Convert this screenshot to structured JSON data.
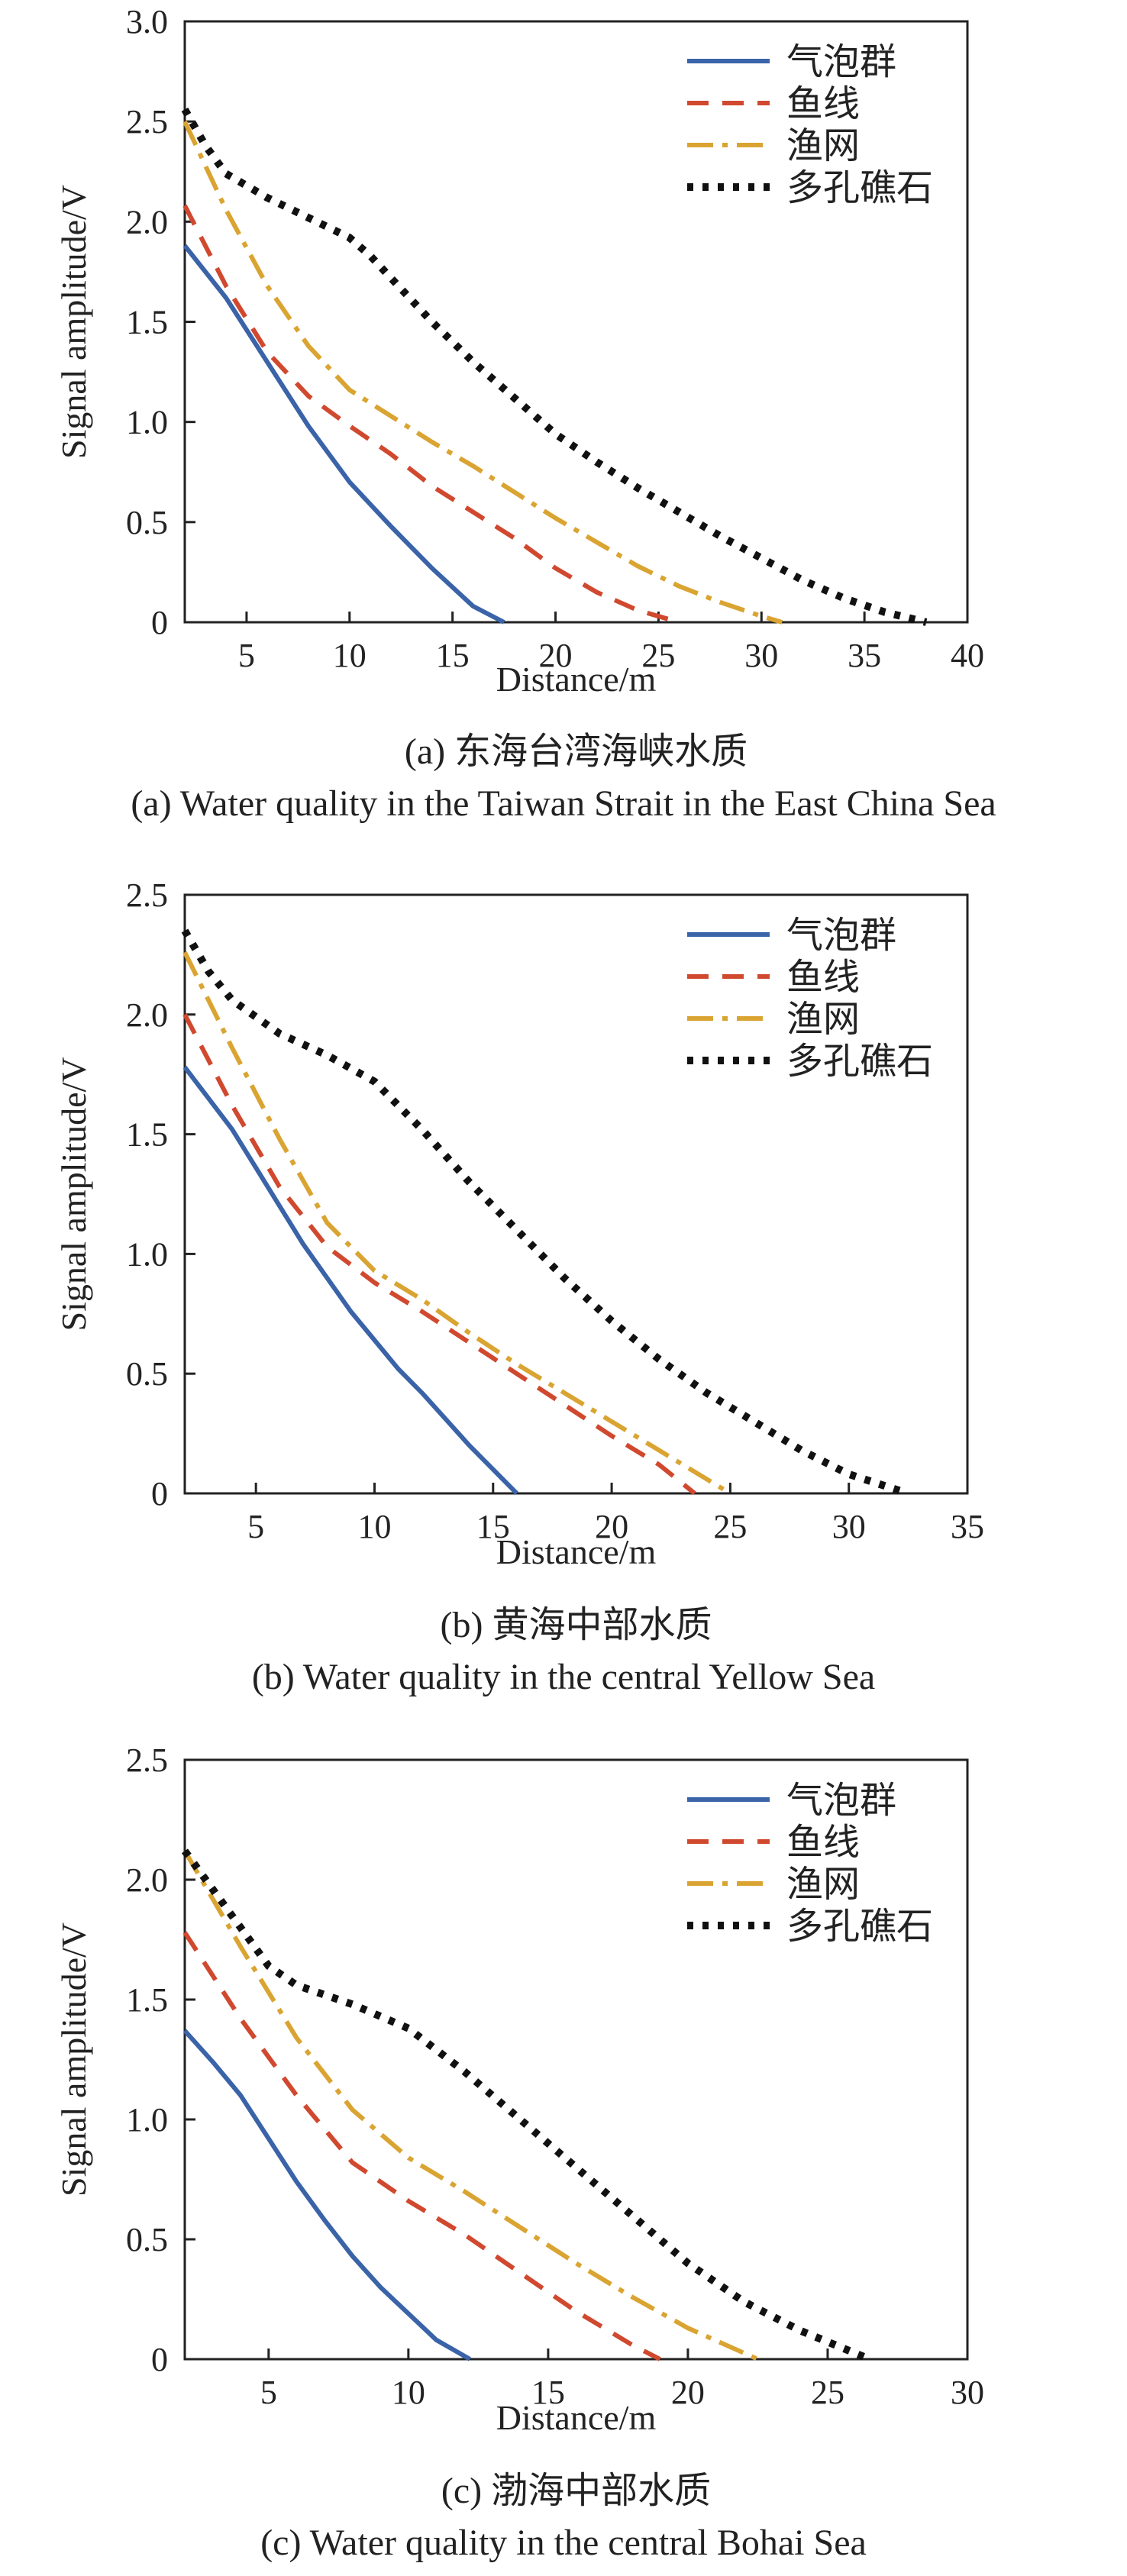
{
  "legend": [
    "气泡群",
    "鱼线",
    "渔网",
    "多孔礁石"
  ],
  "colors": [
    "#3A63A8",
    "#D0492F",
    "#DAA432",
    "#111111"
  ],
  "chart_data": [
    {
      "type": "line",
      "title": "",
      "xlabel": "Distance/m",
      "ylabel": "Signal amplitude/V",
      "xlim": [
        2,
        40
      ],
      "ylim": [
        0,
        3.0
      ],
      "xticks": [
        5,
        10,
        15,
        20,
        25,
        30,
        35,
        40
      ],
      "yticks": [
        0,
        0.5,
        1.0,
        1.5,
        2.0,
        2.5,
        3.0
      ],
      "ytick_labels": [
        "0",
        "0.5",
        "1.0",
        "1.5",
        "2.0",
        "2.5",
        "3.0"
      ],
      "caption_cn": "(a) 东海台湾海峡水质",
      "caption_en": "(a) Water quality in the Taiwan Strait in the East China Sea",
      "series": [
        {
          "name": "气泡群",
          "x": [
            2,
            4,
            6,
            8,
            10,
            12,
            14,
            16,
            17.5
          ],
          "y": [
            1.88,
            1.62,
            1.3,
            0.98,
            0.7,
            0.48,
            0.27,
            0.08,
            0
          ]
        },
        {
          "name": "鱼线",
          "x": [
            2,
            4,
            6,
            8,
            10,
            12,
            14,
            16,
            18,
            20,
            22,
            24,
            26
          ],
          "y": [
            2.08,
            1.68,
            1.35,
            1.13,
            0.98,
            0.84,
            0.68,
            0.55,
            0.42,
            0.27,
            0.15,
            0.06,
            0
          ]
        },
        {
          "name": "渔网",
          "x": [
            2,
            4,
            6,
            8,
            10,
            12,
            14,
            16,
            18,
            20,
            22,
            24,
            26,
            28,
            30,
            31
          ],
          "y": [
            2.5,
            2.06,
            1.68,
            1.38,
            1.16,
            1.03,
            0.9,
            0.78,
            0.65,
            0.52,
            0.4,
            0.28,
            0.18,
            0.1,
            0.03,
            0
          ]
        },
        {
          "name": "多孔礁石",
          "x": [
            2,
            3,
            4,
            6,
            8,
            10,
            11,
            12,
            14,
            16,
            18,
            20,
            22,
            24,
            26,
            28,
            30,
            32,
            34,
            36,
            38
          ],
          "y": [
            2.56,
            2.38,
            2.24,
            2.12,
            2.02,
            1.92,
            1.83,
            1.72,
            1.5,
            1.3,
            1.12,
            0.94,
            0.8,
            0.67,
            0.55,
            0.43,
            0.32,
            0.21,
            0.12,
            0.05,
            0
          ]
        }
      ]
    },
    {
      "type": "line",
      "title": "",
      "xlabel": "Distance/m",
      "ylabel": "Signal amplitude/V",
      "xlim": [
        2,
        35
      ],
      "ylim": [
        0,
        2.5
      ],
      "xticks": [
        5,
        10,
        15,
        20,
        25,
        30,
        35
      ],
      "yticks": [
        0,
        0.5,
        1.0,
        1.5,
        2.0,
        2.5
      ],
      "ytick_labels": [
        "0",
        "0.5",
        "1.0",
        "1.5",
        "2.0",
        "2.5"
      ],
      "caption_cn": "(b) 黄海中部水质",
      "caption_en": "(b) Water quality in the central Yellow Sea",
      "series": [
        {
          "name": "气泡群",
          "x": [
            2,
            3,
            4,
            5,
            6,
            7,
            8,
            9,
            10,
            11,
            12,
            13,
            14,
            15,
            16
          ],
          "y": [
            1.78,
            1.65,
            1.52,
            1.36,
            1.2,
            1.04,
            0.9,
            0.76,
            0.64,
            0.52,
            0.42,
            0.31,
            0.2,
            0.1,
            0
          ]
        },
        {
          "name": "鱼线",
          "x": [
            2,
            4,
            6,
            8,
            10,
            12,
            14,
            16,
            18,
            20,
            22,
            23.5
          ],
          "y": [
            2.0,
            1.62,
            1.28,
            1.03,
            0.88,
            0.76,
            0.63,
            0.5,
            0.37,
            0.24,
            0.12,
            0
          ]
        },
        {
          "name": "渔网",
          "x": [
            2,
            4,
            6,
            8,
            10,
            12,
            14,
            16,
            18,
            20,
            22,
            24,
            25
          ],
          "y": [
            2.26,
            1.86,
            1.48,
            1.13,
            0.93,
            0.81,
            0.67,
            0.54,
            0.42,
            0.3,
            0.18,
            0.06,
            0
          ]
        },
        {
          "name": "多孔礁石",
          "x": [
            2,
            3,
            4,
            6,
            8,
            10,
            12,
            14,
            16,
            18,
            20,
            22,
            24,
            26,
            28,
            30,
            32.5
          ],
          "y": [
            2.35,
            2.18,
            2.06,
            1.92,
            1.83,
            1.72,
            1.52,
            1.3,
            1.1,
            0.9,
            0.72,
            0.56,
            0.42,
            0.3,
            0.18,
            0.08,
            0
          ]
        }
      ]
    },
    {
      "type": "line",
      "title": "",
      "xlabel": "Distance/m",
      "ylabel": "Signal amplitude/V",
      "xlim": [
        2,
        30
      ],
      "ylim": [
        0,
        2.5
      ],
      "xticks": [
        5,
        10,
        15,
        20,
        25,
        30
      ],
      "yticks": [
        0,
        0.5,
        1.0,
        1.5,
        2.0,
        2.5
      ],
      "ytick_labels": [
        "0",
        "0.5",
        "1.0",
        "1.5",
        "2.0",
        "2.5"
      ],
      "caption_cn": "(c) 渤海中部水质",
      "caption_en": "(c) Water quality in the central Bohai Sea",
      "series": [
        {
          "name": "气泡群",
          "x": [
            2,
            3,
            4,
            5,
            6,
            7,
            8,
            9,
            10,
            11,
            12.2
          ],
          "y": [
            1.37,
            1.24,
            1.1,
            0.92,
            0.74,
            0.58,
            0.43,
            0.3,
            0.19,
            0.08,
            0
          ]
        },
        {
          "name": "鱼线",
          "x": [
            2,
            4,
            6,
            8,
            10,
            12,
            14,
            16,
            18,
            19
          ],
          "y": [
            1.78,
            1.42,
            1.1,
            0.82,
            0.66,
            0.52,
            0.36,
            0.2,
            0.06,
            0
          ]
        },
        {
          "name": "渔网",
          "x": [
            2,
            4,
            6,
            8,
            10,
            12,
            14,
            16,
            18,
            20,
            22.5
          ],
          "y": [
            2.12,
            1.72,
            1.34,
            1.04,
            0.84,
            0.7,
            0.55,
            0.4,
            0.26,
            0.13,
            0
          ]
        },
        {
          "name": "多孔礁石",
          "x": [
            2,
            3,
            4,
            5,
            6,
            7,
            8,
            10,
            12,
            14,
            16,
            18,
            20,
            22,
            24,
            26.5
          ],
          "y": [
            2.12,
            1.96,
            1.8,
            1.64,
            1.56,
            1.52,
            1.48,
            1.38,
            1.2,
            1.0,
            0.8,
            0.6,
            0.4,
            0.24,
            0.12,
            0
          ]
        }
      ]
    }
  ]
}
